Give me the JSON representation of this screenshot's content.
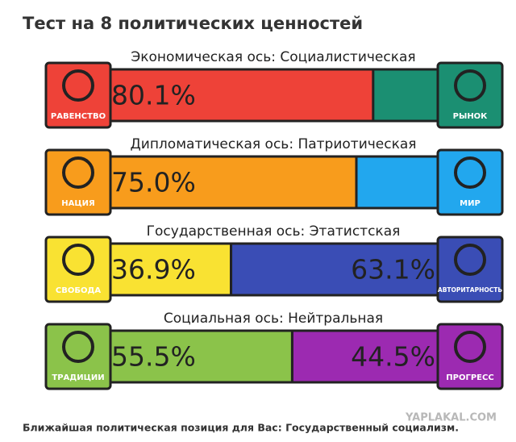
{
  "title": "Тест на 8 политических ценностей",
  "xlim": [
    0,
    100
  ],
  "axes": [
    {
      "title": "Экономическая ось: Социалистическая",
      "left_label": "РАВЕНСТВО",
      "right_label": "РЫНОК",
      "left_value": 80.1,
      "left_value_label": "80.1%",
      "left_color": "#ee4238",
      "right_color": "#1b8f72"
    },
    {
      "title": "Дипломатическая ось: Патриотическая",
      "left_label": "НАЦИЯ",
      "right_label": "МИР",
      "left_value": 75.0,
      "left_value_label": "75.0%",
      "left_color": "#f89c1c",
      "right_color": "#22a7ee"
    },
    {
      "title": "Государственная ось: Этатистская",
      "left_label": "СВОБОДА",
      "right_label": "АВТОРИТАРНОСТЬ",
      "left_value": 36.9,
      "left_value_label": "36.9%",
      "right_value": 63.1,
      "right_value_label": "63.1%",
      "left_color": "#f9e232",
      "right_color": "#3a4db5"
    },
    {
      "title": "Социальная ось: Нейтральная",
      "left_label": "ТРАДИЦИИ",
      "right_label": "ПРОГРЕСС",
      "left_value": 55.5,
      "left_value_label": "55.5%",
      "right_value": 44.5,
      "right_value_label": "44.5%",
      "left_color": "#8bc34a",
      "right_color": "#9c2ab1"
    }
  ],
  "watermark": "YAPLAKAL.COM",
  "footer": "Ближайшая политическая позиция для Вас: Государственный социализм."
}
